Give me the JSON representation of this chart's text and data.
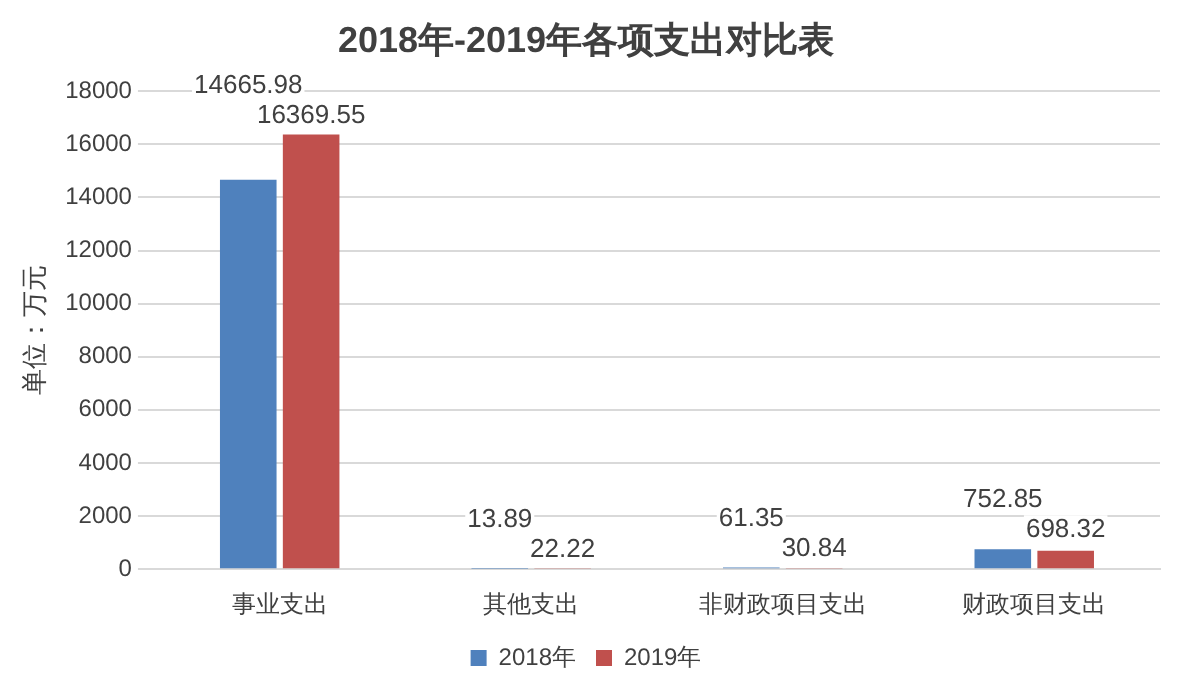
{
  "chart_data": {
    "type": "bar",
    "title": "2018年-2019年各项支出对比表",
    "ylabel": "单位：万元",
    "categories": [
      "事业支出",
      "其他支出",
      "非财政项目支出",
      "财政项目支出"
    ],
    "series": [
      {
        "name": "2018年",
        "color": "#4f81bd",
        "values": [
          14665.98,
          13.89,
          61.35,
          752.85
        ]
      },
      {
        "name": "2019年",
        "color": "#c0504d",
        "values": [
          16369.55,
          22.22,
          30.84,
          698.32
        ]
      }
    ],
    "ylim": [
      0,
      18000
    ],
    "yticks": [
      0,
      2000,
      4000,
      6000,
      8000,
      10000,
      12000,
      14000,
      16000,
      18000
    ],
    "grid": "y",
    "legend": "bottom",
    "data_labels": true
  }
}
